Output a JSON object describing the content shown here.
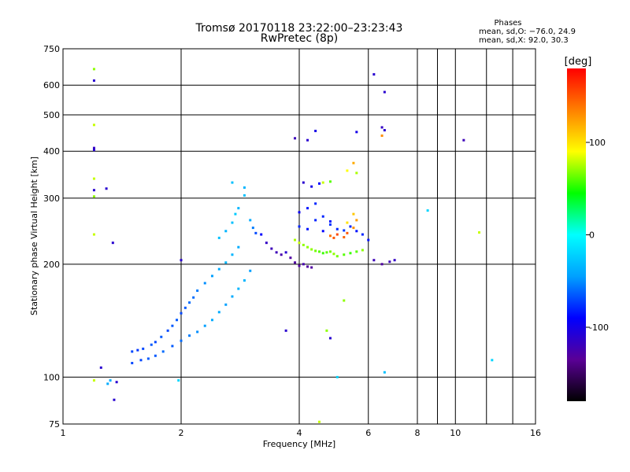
{
  "chart_data": {
    "type": "scatter",
    "title": "Tromsø 20170118 23:22:00–23:23:43",
    "subtitle": "RwPretec (8p)",
    "stats": {
      "title": "Phases",
      "line1": "mean, sd,O: −76.0, 24.9",
      "line2": "mean, sd,X:  92.0, 30.3"
    },
    "xlabel": "Frequency [MHz]",
    "ylabel": "Stationary phase Virtual Height [km]",
    "x_scale": "log2",
    "y_scale": "log",
    "xlim": [
      1,
      16
    ],
    "ylim": [
      75,
      750
    ],
    "x_ticks": [
      1,
      2,
      4,
      6,
      8,
      10,
      16
    ],
    "x_minor_ticks": [
      9,
      12,
      14
    ],
    "y_ticks": [
      75,
      100,
      200,
      300,
      400,
      500,
      600,
      750
    ],
    "grid": true,
    "colorbar": {
      "label": "[deg]",
      "range": [
        -180,
        180
      ],
      "ticks": [
        100,
        0,
        -100
      ],
      "colormap": [
        "#000000",
        "#5a0096",
        "#0000ff",
        "#00a0ff",
        "#00ffff",
        "#00ff00",
        "#ffff00",
        "#ff8000",
        "#ff0000"
      ]
    },
    "series": [
      {
        "points": [
          [
            1.2,
            662,
            70
          ],
          [
            1.2,
            617,
            -110
          ],
          [
            1.2,
            470,
            80
          ],
          [
            1.2,
            408,
            -115
          ],
          [
            1.2,
            403,
            -110
          ],
          [
            1.2,
            338,
            80
          ],
          [
            1.2,
            315,
            -110
          ],
          [
            1.2,
            303,
            70
          ],
          [
            1.2,
            240,
            80
          ],
          [
            1.29,
            318,
            -110
          ],
          [
            1.34,
            228,
            -110
          ],
          [
            1.2,
            98,
            80
          ],
          [
            1.25,
            106,
            -110
          ],
          [
            1.3,
            96,
            -40
          ],
          [
            1.32,
            98,
            -40
          ],
          [
            1.37,
            97,
            -110
          ],
          [
            1.35,
            87,
            -110
          ],
          [
            1.5,
            117,
            -70
          ],
          [
            1.55,
            118,
            -75
          ],
          [
            1.6,
            119,
            -70
          ],
          [
            1.68,
            122,
            -65
          ],
          [
            1.72,
            124,
            -70
          ],
          [
            1.78,
            128,
            -65
          ],
          [
            1.85,
            133,
            -70
          ],
          [
            1.9,
            137,
            -65
          ],
          [
            1.95,
            142,
            -65
          ],
          [
            2.0,
            148,
            -70
          ],
          [
            2.05,
            153,
            -65
          ],
          [
            2.1,
            158,
            -60
          ],
          [
            2.15,
            163,
            -60
          ],
          [
            2.2,
            170,
            -55
          ],
          [
            2.3,
            178,
            -50
          ],
          [
            2.4,
            186,
            -45
          ],
          [
            2.5,
            194,
            -40
          ],
          [
            2.6,
            202,
            -35
          ],
          [
            2.7,
            212,
            -35
          ],
          [
            2.8,
            222,
            -40
          ],
          [
            1.5,
            109,
            -70
          ],
          [
            1.58,
            111,
            -70
          ],
          [
            1.65,
            112,
            -65
          ],
          [
            1.72,
            114,
            -65
          ],
          [
            1.8,
            117,
            -60
          ],
          [
            1.9,
            121,
            -65
          ],
          [
            2.0,
            125,
            -60
          ],
          [
            2.1,
            129,
            -55
          ],
          [
            2.2,
            132,
            -50
          ],
          [
            2.3,
            137,
            -45
          ],
          [
            2.4,
            142,
            -40
          ],
          [
            2.5,
            149,
            -40
          ],
          [
            2.6,
            156,
            -45
          ],
          [
            2.7,
            164,
            -40
          ],
          [
            2.8,
            172,
            -35
          ],
          [
            2.9,
            181,
            -35
          ],
          [
            3.0,
            192,
            -45
          ],
          [
            2.5,
            235,
            -30
          ],
          [
            2.6,
            245,
            -35
          ],
          [
            2.7,
            258,
            -30
          ],
          [
            2.75,
            272,
            -25
          ],
          [
            2.8,
            282,
            -35
          ],
          [
            2.9,
            305,
            -30
          ],
          [
            2.7,
            330,
            -30
          ],
          [
            2.9,
            320,
            -35
          ],
          [
            3.0,
            262,
            -40
          ],
          [
            3.05,
            250,
            -55
          ],
          [
            3.1,
            242,
            -70
          ],
          [
            3.2,
            240,
            -90
          ],
          [
            3.3,
            228,
            -115
          ],
          [
            3.4,
            220,
            -120
          ],
          [
            3.5,
            215,
            -120
          ],
          [
            3.6,
            212,
            -125
          ],
          [
            3.7,
            215,
            -110
          ],
          [
            3.8,
            208,
            -130
          ],
          [
            3.9,
            202,
            -130
          ],
          [
            4.0,
            198,
            -130
          ],
          [
            4.1,
            200,
            -125
          ],
          [
            4.2,
            197,
            -130
          ],
          [
            4.3,
            196,
            -130
          ],
          [
            3.9,
            232,
            75
          ],
          [
            4.0,
            228,
            80
          ],
          [
            4.1,
            225,
            70
          ],
          [
            4.2,
            222,
            70
          ],
          [
            4.3,
            219,
            70
          ],
          [
            4.4,
            217,
            65
          ],
          [
            4.5,
            216,
            60
          ],
          [
            4.6,
            214,
            55
          ],
          [
            4.7,
            215,
            60
          ],
          [
            4.8,
            216,
            65
          ],
          [
            4.9,
            213,
            70
          ],
          [
            5.0,
            210,
            65
          ],
          [
            5.2,
            212,
            60
          ],
          [
            5.4,
            214,
            55
          ],
          [
            5.6,
            216,
            60
          ],
          [
            5.8,
            218,
            70
          ],
          [
            4.8,
            238,
            140
          ],
          [
            4.9,
            235,
            150
          ],
          [
            5.0,
            240,
            155
          ],
          [
            5.2,
            236,
            145
          ],
          [
            5.3,
            242,
            150
          ],
          [
            5.5,
            250,
            130
          ],
          [
            5.6,
            262,
            125
          ],
          [
            5.5,
            272,
            110
          ],
          [
            5.3,
            258,
            100
          ],
          [
            4.0,
            252,
            -80
          ],
          [
            4.2,
            248,
            -85
          ],
          [
            4.4,
            262,
            -80
          ],
          [
            4.6,
            245,
            -90
          ],
          [
            4.8,
            255,
            -75
          ],
          [
            5.0,
            248,
            -80
          ],
          [
            5.2,
            246,
            -75
          ],
          [
            5.4,
            252,
            -80
          ],
          [
            5.6,
            245,
            -85
          ],
          [
            5.8,
            240,
            -80
          ],
          [
            6.0,
            232,
            -85
          ],
          [
            6.2,
            205,
            -120
          ],
          [
            6.5,
            200,
            -130
          ],
          [
            6.8,
            203,
            -120
          ],
          [
            7.0,
            205,
            -115
          ],
          [
            4.0,
            275,
            -95
          ],
          [
            4.2,
            282,
            -85
          ],
          [
            4.4,
            290,
            -80
          ],
          [
            4.6,
            268,
            -80
          ],
          [
            4.8,
            260,
            -85
          ],
          [
            4.1,
            330,
            -110
          ],
          [
            4.3,
            322,
            -100
          ],
          [
            4.5,
            328,
            -90
          ],
          [
            4.8,
            332,
            60
          ],
          [
            4.6,
            330,
            80
          ],
          [
            5.5,
            372,
            120
          ],
          [
            5.3,
            355,
            90
          ],
          [
            5.6,
            350,
            75
          ],
          [
            4.4,
            453,
            -100
          ],
          [
            4.2,
            428,
            -110
          ],
          [
            3.9,
            433,
            -120
          ],
          [
            5.6,
            450,
            -100
          ],
          [
            6.2,
            641,
            -110
          ],
          [
            6.6,
            575,
            -110
          ],
          [
            6.5,
            463,
            -115
          ],
          [
            6.6,
            455,
            -110
          ],
          [
            6.5,
            440,
            130
          ],
          [
            10.5,
            428,
            -120
          ],
          [
            8.5,
            278,
            -20
          ],
          [
            11.5,
            243,
            80
          ],
          [
            12.4,
            111,
            -20
          ],
          [
            6.6,
            103,
            -30
          ],
          [
            5.0,
            100,
            -20
          ],
          [
            5.2,
            160,
            70
          ],
          [
            4.7,
            133,
            70
          ],
          [
            4.8,
            127,
            -110
          ],
          [
            4.5,
            76,
            80
          ],
          [
            3.7,
            133,
            -110
          ],
          [
            1.97,
            98,
            -20
          ],
          [
            2.0,
            205,
            -110
          ]
        ]
      }
    ]
  }
}
